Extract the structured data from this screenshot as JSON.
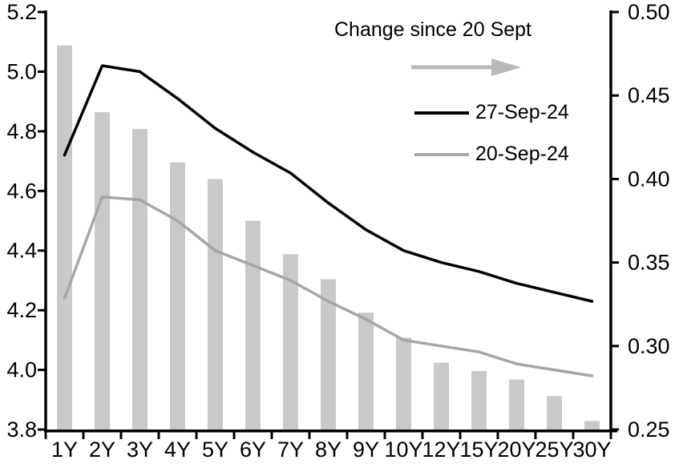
{
  "chart_data": {
    "type": "bar",
    "subtype": "bar-and-line-combo",
    "title": "",
    "xlabel": "",
    "ylabel": "",
    "categories": [
      "1Y",
      "2Y",
      "3Y",
      "4Y",
      "5Y",
      "6Y",
      "7Y",
      "8Y",
      "9Y",
      "10Y",
      "12Y",
      "15Y",
      "20Y",
      "25Y",
      "30Y"
    ],
    "series": [
      {
        "name": "Change since 20 Sept",
        "type": "bar",
        "axis": "right",
        "color": "#c9c9c9",
        "values": [
          0.48,
          0.44,
          0.43,
          0.41,
          0.4,
          0.375,
          0.355,
          0.34,
          0.32,
          0.305,
          0.29,
          0.285,
          0.28,
          0.27,
          0.255
        ]
      },
      {
        "name": "27-Sep-24",
        "type": "line",
        "axis": "left",
        "color": "#000000",
        "values": [
          4.72,
          5.02,
          5.0,
          4.91,
          4.81,
          4.73,
          4.66,
          4.56,
          4.47,
          4.4,
          4.36,
          4.33,
          4.29,
          4.26,
          4.23
        ]
      },
      {
        "name": "20-Sep-24",
        "type": "line",
        "axis": "left",
        "color": "#a6a6a6",
        "values": [
          4.24,
          4.58,
          4.57,
          4.5,
          4.4,
          4.35,
          4.3,
          4.23,
          4.17,
          4.1,
          4.08,
          4.06,
          4.02,
          4.0,
          3.98
        ]
      }
    ],
    "left_axis": {
      "min": 3.8,
      "max": 5.2,
      "tick_labels": [
        "5.2",
        "5.0",
        "4.8",
        "4.6",
        "4.4",
        "4.2",
        "4.0",
        "3.8"
      ]
    },
    "right_axis": {
      "min": 0.25,
      "max": 0.5,
      "tick_labels": [
        "0.50",
        "0.45",
        "0.40",
        "0.35",
        "0.30",
        "0.25"
      ]
    },
    "grid": "off",
    "legend_position": "top-right-inside",
    "legend_arrow_icon": "arrow-right",
    "legend_arrow_color": "#b9b9b9",
    "axis_color": "#000000",
    "text_color": "#000000"
  }
}
